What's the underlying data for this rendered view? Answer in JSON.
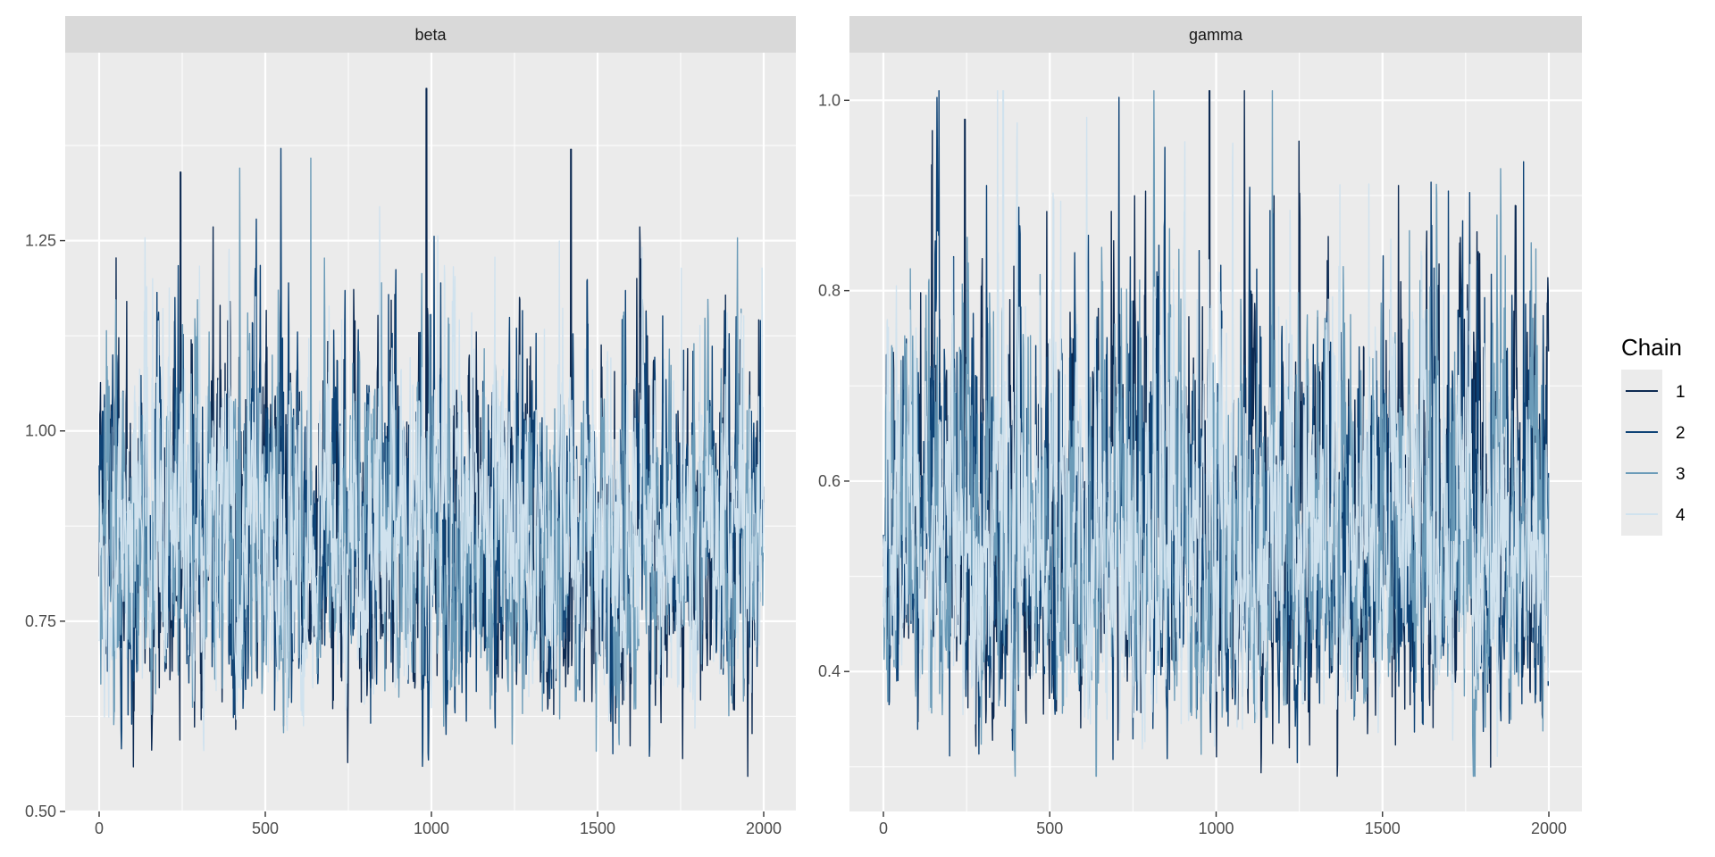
{
  "chart_data": {
    "type": "line",
    "title": "",
    "xlabel": "",
    "ylabel": "",
    "legend": {
      "title": "Chain",
      "position": "right",
      "entries": [
        "1",
        "2",
        "3",
        "4"
      ]
    },
    "series_colors": {
      "1": "#0d2a52",
      "2": "#0e4376",
      "3": "#6b9bb8",
      "4": "#d0e2ee"
    },
    "n_iterations": 2000,
    "grid": true,
    "panels": [
      {
        "strip": "beta",
        "xlim": [
          0,
          2000
        ],
        "ylim": [
          0.5,
          1.497
        ],
        "x_ticks": [
          0,
          500,
          1000,
          1500,
          2000
        ],
        "x_tick_labels": [
          "0",
          "500",
          "1000",
          "1500",
          "2000"
        ],
        "y_ticks": [
          0.5,
          0.75,
          1.0,
          1.25
        ],
        "y_tick_labels": [
          "0.50",
          "0.75",
          "1.00",
          "1.25"
        ],
        "y_minor": [
          0.625,
          0.875,
          1.125,
          1.375
        ],
        "trace_model": {
          "center": 0.86,
          "log_sd": 0.13,
          "autocorrelation": 0.7,
          "min": 0.545,
          "max": 1.45
        },
        "peaks": [
          {
            "x": 985,
            "y": 1.45,
            "chain": "1"
          },
          {
            "x": 1420,
            "y": 1.37,
            "chain": "1"
          },
          {
            "x": 245,
            "y": 1.34,
            "chain": "1"
          }
        ]
      },
      {
        "strip": "gamma",
        "xlim": [
          0,
          2000
        ],
        "ylim": [
          0.253,
          1.05
        ],
        "x_ticks": [
          0,
          500,
          1000,
          1500,
          2000
        ],
        "x_tick_labels": [
          "0",
          "500",
          "1000",
          "1500",
          "2000"
        ],
        "y_ticks": [
          0.4,
          0.6,
          0.8,
          1.0
        ],
        "y_tick_labels": [
          "0.4",
          "0.6",
          "0.8",
          "1.0"
        ],
        "y_minor": [
          0.3,
          0.5,
          0.7,
          0.9
        ],
        "trace_model": {
          "center": 0.54,
          "log_sd": 0.19,
          "autocorrelation": 0.7,
          "min": 0.29,
          "max": 1.01
        },
        "peaks": [
          {
            "x": 360,
            "y": 1.01,
            "chain": "4"
          },
          {
            "x": 980,
            "y": 1.01,
            "chain": "1"
          },
          {
            "x": 245,
            "y": 0.98,
            "chain": "1"
          }
        ]
      }
    ]
  }
}
